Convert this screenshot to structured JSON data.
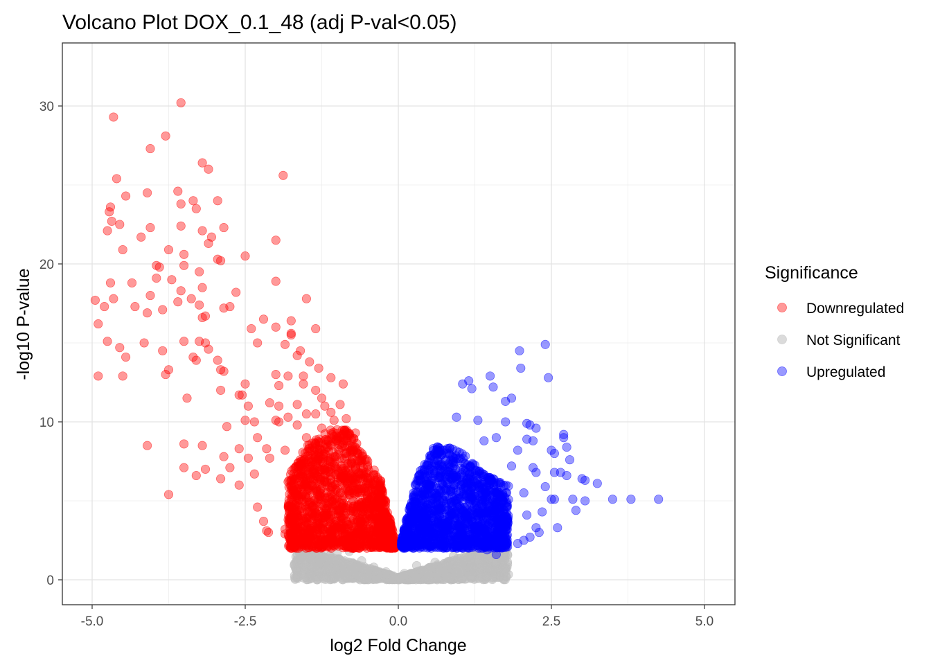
{
  "chart_data": {
    "type": "scatter",
    "title": "Volcano Plot DOX_0.1_48 (adj P-val<0.05)",
    "xlabel": "log2 Fold Change",
    "ylabel": "-log10 P-value",
    "xlim": [
      -5.5,
      5.5
    ],
    "ylim": [
      -1.5,
      33.5
    ],
    "x_ticks": [
      -5.0,
      -2.5,
      0.0,
      2.5,
      5.0
    ],
    "x_tick_labels": [
      "-5.0",
      "-2.5",
      "0.0",
      "2.5",
      "5.0"
    ],
    "y_ticks": [
      0,
      10,
      20,
      30
    ],
    "y_tick_labels": [
      "0",
      "10",
      "20",
      "30"
    ],
    "grid": true,
    "legend": {
      "title": "Significance",
      "position": "right",
      "entries": [
        "Downregulated",
        "Not Significant",
        "Upregulated"
      ]
    },
    "colors": {
      "Downregulated": "#ff0000",
      "Not Significant": "#bebebe",
      "Upregulated": "#0000ff"
    },
    "series": [
      {
        "name": "Downregulated",
        "points": [
          [
            -4.65,
            29.3
          ],
          [
            -3.55,
            30.2
          ],
          [
            -3.8,
            28.1
          ],
          [
            -4.05,
            27.3
          ],
          [
            -3.2,
            26.4
          ],
          [
            -3.1,
            26.0
          ],
          [
            -1.88,
            25.6
          ],
          [
            -4.6,
            25.4
          ],
          [
            -4.1,
            24.5
          ],
          [
            -3.6,
            24.6
          ],
          [
            -4.45,
            24.3
          ],
          [
            -3.35,
            24.0
          ],
          [
            -2.95,
            24.0
          ],
          [
            -4.7,
            23.6
          ],
          [
            -3.55,
            23.8
          ],
          [
            -4.72,
            23.3
          ],
          [
            -3.3,
            23.5
          ],
          [
            -4.68,
            22.7
          ],
          [
            -4.55,
            22.5
          ],
          [
            -4.05,
            22.3
          ],
          [
            -3.55,
            22.4
          ],
          [
            -3.2,
            22.1
          ],
          [
            -2.85,
            22.3
          ],
          [
            -4.75,
            22.1
          ],
          [
            -4.2,
            21.7
          ],
          [
            -3.05,
            21.7
          ],
          [
            -2.0,
            21.5
          ],
          [
            -3.1,
            21.3
          ],
          [
            -4.5,
            20.9
          ],
          [
            -3.75,
            20.9
          ],
          [
            -3.5,
            20.6
          ],
          [
            -2.5,
            20.5
          ],
          [
            -2.95,
            20.3
          ],
          [
            -2.9,
            20.2
          ],
          [
            -3.95,
            19.9
          ],
          [
            -3.9,
            19.8
          ],
          [
            -3.5,
            19.9
          ],
          [
            -3.25,
            19.5
          ],
          [
            -3.95,
            19.1
          ],
          [
            -3.7,
            19.0
          ],
          [
            -4.7,
            18.8
          ],
          [
            -4.35,
            18.8
          ],
          [
            -2.0,
            18.9
          ],
          [
            -3.2,
            18.5
          ],
          [
            -3.55,
            18.3
          ],
          [
            -4.05,
            18.0
          ],
          [
            -2.65,
            18.2
          ],
          [
            -3.38,
            17.8
          ],
          [
            -4.95,
            17.7
          ],
          [
            -4.65,
            17.8
          ],
          [
            -1.5,
            17.8
          ],
          [
            -4.8,
            17.3
          ],
          [
            -4.3,
            17.3
          ],
          [
            -3.6,
            17.6
          ],
          [
            -3.25,
            17.4
          ],
          [
            -2.85,
            17.2
          ],
          [
            -2.75,
            17.3
          ],
          [
            -3.85,
            17.1
          ],
          [
            -4.1,
            16.9
          ],
          [
            -3.2,
            16.6
          ],
          [
            -3.15,
            16.7
          ],
          [
            -2.2,
            16.5
          ],
          [
            -1.75,
            16.4
          ],
          [
            -4.9,
            16.2
          ],
          [
            -2.0,
            16.0
          ],
          [
            -2.4,
            15.9
          ],
          [
            -1.35,
            15.9
          ],
          [
            -1.75,
            15.6
          ],
          [
            -1.75,
            15.5
          ],
          [
            -4.75,
            15.1
          ],
          [
            -4.15,
            15.0
          ],
          [
            -3.5,
            15.1
          ],
          [
            -3.25,
            15.1
          ],
          [
            -3.15,
            15.0
          ],
          [
            -2.3,
            15.0
          ],
          [
            -1.85,
            14.9
          ],
          [
            -4.55,
            14.7
          ],
          [
            -3.85,
            14.5
          ],
          [
            -3.1,
            14.6
          ],
          [
            -1.6,
            14.5
          ],
          [
            -4.45,
            14.1
          ],
          [
            -3.35,
            14.1
          ],
          [
            -3.3,
            13.9
          ],
          [
            -2.95,
            13.9
          ],
          [
            -1.65,
            14.2
          ],
          [
            -1.45,
            13.8
          ],
          [
            -1.3,
            13.4
          ],
          [
            -3.75,
            13.3
          ],
          [
            -3.8,
            13.0
          ],
          [
            -2.9,
            13.3
          ],
          [
            -2.85,
            13.2
          ],
          [
            -2.0,
            13.0
          ],
          [
            -1.8,
            12.9
          ],
          [
            -1.55,
            12.9
          ],
          [
            -4.9,
            12.9
          ],
          [
            -4.5,
            12.9
          ],
          [
            -2.5,
            12.4
          ],
          [
            -1.95,
            12.3
          ],
          [
            -1.55,
            12.4
          ],
          [
            -1.1,
            12.8
          ],
          [
            -0.9,
            12.4
          ],
          [
            -2.9,
            12.0
          ],
          [
            -1.35,
            12.0
          ],
          [
            -1.25,
            11.5
          ],
          [
            -2.6,
            11.7
          ],
          [
            -2.55,
            11.7
          ],
          [
            -3.45,
            11.5
          ],
          [
            -2.1,
            11.2
          ],
          [
            -1.95,
            11.0
          ],
          [
            -1.65,
            11.1
          ],
          [
            -2.45,
            11.0
          ],
          [
            -1.2,
            11.0
          ],
          [
            -0.95,
            11.1
          ],
          [
            -1.1,
            10.6
          ],
          [
            -1.35,
            10.5
          ],
          [
            -1.5,
            10.5
          ],
          [
            -1.8,
            10.3
          ],
          [
            -2.0,
            10.1
          ],
          [
            -1.95,
            10.0
          ],
          [
            -2.5,
            10.1
          ],
          [
            -2.35,
            10.0
          ],
          [
            -1.05,
            10.1
          ],
          [
            -0.85,
            10.2
          ],
          [
            -1.65,
            9.8
          ],
          [
            -1.25,
            9.6
          ],
          [
            -1.0,
            9.5
          ],
          [
            -2.8,
            9.7
          ],
          [
            -2.3,
            9.0
          ],
          [
            -1.5,
            9.0
          ],
          [
            -0.7,
            9.3
          ],
          [
            -3.5,
            8.6
          ],
          [
            -3.2,
            8.5
          ],
          [
            -4.1,
            8.5
          ],
          [
            -2.6,
            8.3
          ],
          [
            -2.15,
            8.3
          ],
          [
            -1.85,
            8.2
          ],
          [
            -1.4,
            8.4
          ],
          [
            -2.85,
            7.8
          ],
          [
            -2.45,
            7.7
          ],
          [
            -2.1,
            7.7
          ],
          [
            -1.6,
            7.6
          ],
          [
            -0.5,
            7.5
          ],
          [
            -3.5,
            7.1
          ],
          [
            -3.15,
            7.0
          ],
          [
            -2.75,
            7.1
          ],
          [
            -2.9,
            6.4
          ],
          [
            -3.3,
            6.6
          ],
          [
            -2.6,
            6.0
          ],
          [
            -2.35,
            6.7
          ],
          [
            -3.75,
            5.4
          ],
          [
            -1.8,
            6.2
          ],
          [
            -2.3,
            4.6
          ],
          [
            -2.2,
            3.7
          ],
          [
            -2.15,
            3.1
          ],
          [
            -2.12,
            3.0
          ],
          [
            -1.85,
            3.2
          ],
          [
            -1.85,
            2.9
          ],
          [
            -1.65,
            2.7
          ],
          [
            -1.5,
            2.6
          ],
          [
            -1.25,
            2.5
          ],
          [
            -1.1,
            2.6
          ]
        ],
        "dense_region": {
          "description": "many overlapping points",
          "x_range": [
            -1.8,
            -0.05
          ],
          "y_max_at_x": [
            [
              -1.8,
              6.5
            ],
            [
              -1.5,
              8.5
            ],
            [
              -1.1,
              9.5
            ],
            [
              -0.8,
              9.5
            ],
            [
              -0.5,
              7.5
            ],
            [
              -0.3,
              6.5
            ],
            [
              -0.05,
              2.5
            ]
          ],
          "y_min": 2.0,
          "count": 1500
        }
      },
      {
        "name": "Not Significant",
        "points": [
          [
            -1.6,
            1.9
          ],
          [
            -1.5,
            1.8
          ],
          [
            -1.0,
            1.7
          ],
          [
            -0.8,
            1.8
          ],
          [
            -1.2,
            1.4
          ],
          [
            -0.9,
            1.0
          ],
          [
            -0.6,
            1.2
          ],
          [
            -0.4,
            0.8
          ],
          [
            -0.2,
            0.5
          ],
          [
            0.1,
            0.4
          ],
          [
            0.3,
            0.9
          ],
          [
            0.6,
            1.1
          ],
          [
            0.9,
            1.5
          ],
          [
            1.2,
            1.8
          ],
          [
            1.4,
            1.7
          ],
          [
            1.6,
            1.9
          ],
          [
            1.7,
            1.5
          ],
          [
            1.0,
            0.7
          ],
          [
            -1.5,
            0.8
          ],
          [
            -1.3,
            0.5
          ],
          [
            -0.7,
            0.3
          ],
          [
            -0.75,
            0.55
          ],
          [
            0.5,
            0.4
          ],
          [
            1.25,
            0.85
          ]
        ],
        "dense_region": {
          "description": "many overlapping points forming a V shape",
          "x_range": [
            -1.7,
            1.8
          ],
          "y_range": [
            0.0,
            2.0
          ],
          "count": 1200
        }
      },
      {
        "name": "Upregulated",
        "points": [
          [
            2.4,
            14.9
          ],
          [
            1.98,
            14.5
          ],
          [
            2.0,
            13.4
          ],
          [
            1.5,
            12.9
          ],
          [
            2.45,
            12.8
          ],
          [
            1.15,
            12.6
          ],
          [
            1.05,
            12.4
          ],
          [
            1.2,
            12.1
          ],
          [
            1.55,
            12.2
          ],
          [
            1.85,
            11.5
          ],
          [
            1.75,
            11.3
          ],
          [
            0.95,
            10.3
          ],
          [
            1.3,
            10.1
          ],
          [
            1.75,
            10.0
          ],
          [
            2.1,
            9.9
          ],
          [
            2.15,
            9.8
          ],
          [
            2.25,
            9.6
          ],
          [
            2.7,
            9.2
          ],
          [
            2.7,
            9.0
          ],
          [
            1.6,
            9.0
          ],
          [
            2.1,
            8.9
          ],
          [
            2.2,
            8.8
          ],
          [
            1.4,
            8.8
          ],
          [
            2.75,
            8.4
          ],
          [
            1.95,
            8.2
          ],
          [
            2.5,
            8.2
          ],
          [
            2.55,
            8.0
          ],
          [
            2.8,
            7.6
          ],
          [
            1.85,
            7.2
          ],
          [
            2.2,
            7.1
          ],
          [
            2.25,
            6.8
          ],
          [
            2.55,
            6.8
          ],
          [
            2.65,
            6.8
          ],
          [
            2.75,
            6.6
          ],
          [
            3.0,
            6.4
          ],
          [
            3.05,
            6.3
          ],
          [
            3.25,
            6.1
          ],
          [
            2.4,
            5.9
          ],
          [
            2.05,
            5.5
          ],
          [
            2.5,
            5.1
          ],
          [
            2.55,
            5.1
          ],
          [
            2.85,
            5.1
          ],
          [
            3.05,
            5.0
          ],
          [
            3.5,
            5.1
          ],
          [
            3.8,
            5.1
          ],
          [
            4.25,
            5.1
          ],
          [
            2.9,
            4.4
          ],
          [
            2.35,
            4.3
          ],
          [
            2.1,
            4.1
          ],
          [
            2.25,
            3.3
          ],
          [
            2.6,
            3.3
          ],
          [
            2.3,
            3.0
          ],
          [
            2.15,
            2.7
          ],
          [
            2.05,
            2.5
          ],
          [
            1.95,
            2.3
          ],
          [
            1.6,
            1.6
          ],
          [
            1.45,
            1.9
          ]
        ],
        "dense_region": {
          "description": "many overlapping points",
          "x_range": [
            0.05,
            1.8
          ],
          "y_max_at_x": [
            [
              0.05,
              2.5
            ],
            [
              0.3,
              6.5
            ],
            [
              0.6,
              8.5
            ],
            [
              0.9,
              8.5
            ],
            [
              1.2,
              7.5
            ],
            [
              1.5,
              6.5
            ],
            [
              1.8,
              6.0
            ]
          ],
          "y_min": 2.0,
          "count": 1400
        }
      }
    ]
  }
}
